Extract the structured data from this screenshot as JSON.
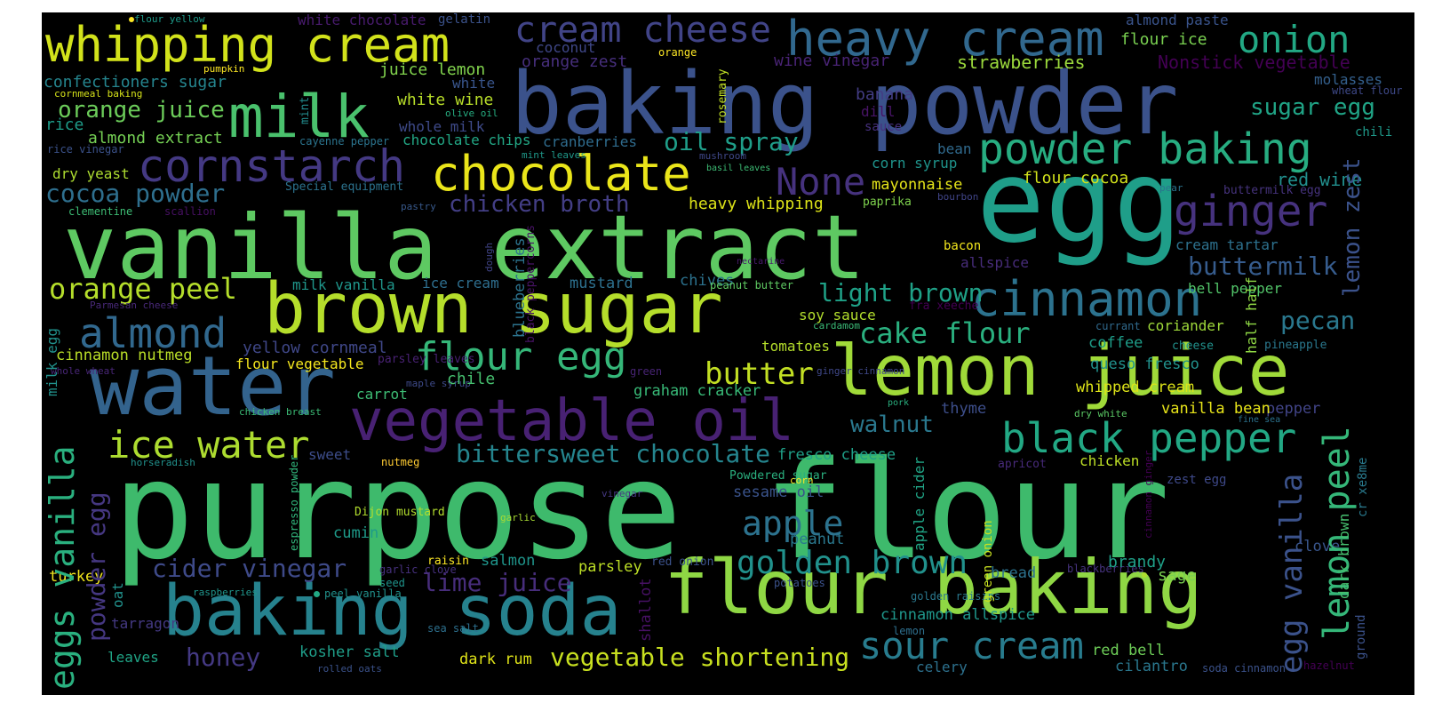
{
  "wordcloud": {
    "background": "#000000",
    "colormap": "viridis",
    "words": [
      {
        "text": "purpose flour",
        "color": "#3eba6c"
      },
      {
        "text": "vanilla extract",
        "color": "#5ec962"
      },
      {
        "text": "egg",
        "color": "#1f9e89"
      },
      {
        "text": "baking powder",
        "color": "#3b528b"
      },
      {
        "text": "brown sugar",
        "color": "#b5de2b"
      },
      {
        "text": "water",
        "color": "#33638d"
      },
      {
        "text": "lemon juice",
        "color": "#a0da39"
      },
      {
        "text": "flour baking",
        "color": "#8fd744"
      },
      {
        "text": "baking soda",
        "color": "#26828e"
      },
      {
        "text": "vegetable oil",
        "color": "#482173"
      },
      {
        "text": "whipping cream",
        "color": "#d2e21b"
      },
      {
        "text": "heavy cream",
        "color": "#31688e"
      },
      {
        "text": "milk",
        "color": "#4ac16d"
      },
      {
        "text": "cream cheese",
        "color": "#414487"
      },
      {
        "text": "chocolate",
        "color": "#eae51a"
      },
      {
        "text": "cornstarch",
        "color": "#443983"
      },
      {
        "text": "cinnamon",
        "color": "#2c728e"
      },
      {
        "text": "powder baking",
        "color": "#27ad81"
      },
      {
        "text": "ginger",
        "color": "#46327e"
      },
      {
        "text": "black pepper",
        "color": "#22a884"
      },
      {
        "text": "onion",
        "color": "#22a884"
      },
      {
        "text": "None",
        "color": "#46327e"
      },
      {
        "text": "almond",
        "color": "#31688e"
      },
      {
        "text": "ice water",
        "color": "#addc30"
      },
      {
        "text": "flour egg",
        "color": "#35b779"
      },
      {
        "text": "sour cream",
        "color": "#287c8e"
      },
      {
        "text": "golden brown",
        "color": "#21918c"
      },
      {
        "text": "lemon peel",
        "color": "#35b779"
      },
      {
        "text": "eggs vanilla",
        "color": "#2ab07f"
      },
      {
        "text": "egg vanilla",
        "color": "#3b528b"
      },
      {
        "text": "cake flour",
        "color": "#2ab07f"
      },
      {
        "text": "apple",
        "color": "#2c728e"
      },
      {
        "text": "butter",
        "color": "#c2df23"
      },
      {
        "text": "cocoa powder",
        "color": "#2e6f8e"
      },
      {
        "text": "powder egg",
        "color": "#b5de2b"
      },
      {
        "text": "orange peel",
        "color": "#453781"
      },
      {
        "text": "vegetable shortening",
        "color": "#c8e020"
      },
      {
        "text": "bittersweet chocolate",
        "color": "#25858e"
      },
      {
        "text": "baking soda",
        "color": "#26828e"
      },
      {
        "text": "oil spray",
        "color": "#1f9e89"
      },
      {
        "text": "buttermilk",
        "color": "#365c8d"
      },
      {
        "text": "lemon zest",
        "color": "#3b528b"
      },
      {
        "text": "cider vinegar",
        "color": "#3e4a89"
      },
      {
        "text": "lime juice",
        "color": "#472d7b"
      },
      {
        "text": "honey",
        "color": "#443983"
      },
      {
        "text": "chicken broth",
        "color": "#433e85"
      },
      {
        "text": "orange juice",
        "color": "#6ccd5a"
      },
      {
        "text": "almond extract",
        "color": "#75d054"
      },
      {
        "text": "confectioners sugar",
        "color": "#25858e"
      },
      {
        "text": "light brown",
        "color": "#1fa187"
      },
      {
        "text": "walnut",
        "color": "#2a788e"
      },
      {
        "text": "pecan",
        "color": "#2a788e"
      },
      {
        "text": "sugar egg",
        "color": "#20a486"
      },
      {
        "text": "red wine",
        "color": "#218f8d"
      },
      {
        "text": "strawberries",
        "color": "#9bd93c"
      },
      {
        "text": "Nonstick vegetable",
        "color": "#440154"
      },
      {
        "text": "flour ice",
        "color": "#7ad151"
      },
      {
        "text": "almond paste",
        "color": "#3a548c"
      },
      {
        "text": "molasses",
        "color": "#34608d"
      },
      {
        "text": "wheat flour",
        "color": "#3e4989"
      },
      {
        "text": "juice lemon",
        "color": "#81d34d"
      },
      {
        "text": "coconut",
        "color": "#3f4788"
      },
      {
        "text": "orange zest",
        "color": "#472f7d"
      },
      {
        "text": "white",
        "color": "#39558c"
      },
      {
        "text": "white wine",
        "color": "#b8de29"
      },
      {
        "text": "whole milk",
        "color": "#3e4a89"
      },
      {
        "text": "white chocolate",
        "color": "#481b6d"
      },
      {
        "text": "gelatin",
        "color": "#3b528b"
      },
      {
        "text": "flour yellow",
        "color": "#1e9b8a"
      },
      {
        "text": "pumpkin",
        "color": "#fde725"
      },
      {
        "text": "cornmeal baking",
        "color": "#d5e21a"
      },
      {
        "text": "rice",
        "color": "#1e9c89"
      },
      {
        "text": "rice vinegar",
        "color": "#3b528b"
      },
      {
        "text": "orange",
        "color": "#fde725"
      },
      {
        "text": "wine vinegar",
        "color": "#482374"
      },
      {
        "text": "banana",
        "color": "#433d84"
      },
      {
        "text": "dill",
        "color": "#481467"
      },
      {
        "text": "sauce",
        "color": "#46307e"
      },
      {
        "text": "bean",
        "color": "#306a8e"
      },
      {
        "text": "chili",
        "color": "#1f9a8a"
      },
      {
        "text": "corn syrup",
        "color": "#1f948c"
      },
      {
        "text": "flour cocoa",
        "color": "#d2e21b"
      },
      {
        "text": "mayonnaise",
        "color": "#e5e419"
      },
      {
        "text": "paprika",
        "color": "#7fd34e"
      },
      {
        "text": "bourbon",
        "color": "#404588"
      },
      {
        "text": "pear",
        "color": "#2b748e"
      },
      {
        "text": "buttermilk egg",
        "color": "#46337e"
      },
      {
        "text": "cream tartar",
        "color": "#2d718e"
      },
      {
        "text": "bacon",
        "color": "#f1e51d"
      },
      {
        "text": "allspice",
        "color": "#472c7a"
      },
      {
        "text": "bell pepper",
        "color": "#52c569"
      },
      {
        "text": "heavy whipping",
        "color": "#dde318"
      },
      {
        "text": "chocolate chips",
        "color": "#22a785"
      },
      {
        "text": "cranberries",
        "color": "#2f6c8e"
      },
      {
        "text": "cayenne pepper",
        "color": "#2b748e"
      },
      {
        "text": "mint leaves",
        "color": "#1f998a"
      },
      {
        "text": "mushroom",
        "color": "#3f4889"
      },
      {
        "text": "basil leaves",
        "color": "#3dbc74"
      },
      {
        "text": "Special equipment",
        "color": "#2c738e"
      },
      {
        "text": "pastry",
        "color": "#38598c"
      },
      {
        "text": "dry yeast",
        "color": "#addc30"
      },
      {
        "text": "clementine",
        "color": "#3dbc74"
      },
      {
        "text": "scallion",
        "color": "#471063"
      },
      {
        "text": "olive oil",
        "color": "#26ad81"
      },
      {
        "text": "mint",
        "color": "#228b8d"
      },
      {
        "text": "rosemary",
        "color": "#c0df25"
      },
      {
        "text": "milk vanilla",
        "color": "#1f968b"
      },
      {
        "text": "ice cream",
        "color": "#2e6e8e"
      },
      {
        "text": "mustard",
        "color": "#2d708e"
      },
      {
        "text": "chives",
        "color": "#2c728e"
      },
      {
        "text": "peanut butter",
        "color": "#5ec962"
      },
      {
        "text": "blueberries",
        "color": "#2c738e"
      },
      {
        "text": "black peppercorns",
        "color": "#471365"
      },
      {
        "text": "nectarine",
        "color": "#414487"
      },
      {
        "text": "dough",
        "color": "#481a6c"
      },
      {
        "text": "Parmesan cheese",
        "color": "#22a884"
      },
      {
        "text": "cinnamon nutmeg",
        "color": "#482878"
      },
      {
        "text": "yellow cornmeal",
        "color": "#bade28"
      },
      {
        "text": "flour vegetable",
        "color": "#3f4788"
      },
      {
        "text": "whole wheat",
        "color": "#f4e61e"
      },
      {
        "text": "parsley leaves",
        "color": "#482677"
      },
      {
        "text": "soy sauce",
        "color": "#482173"
      },
      {
        "text": "tomatoes",
        "color": "#b2dd2d"
      },
      {
        "text": "cardamom",
        "color": "#b5de2b"
      },
      {
        "text": "fra xeeche",
        "color": "#3aba76"
      },
      {
        "text": "currant",
        "color": "#440154"
      },
      {
        "text": "coriander",
        "color": "#306a8e"
      },
      {
        "text": "half half",
        "color": "#9fda3a"
      },
      {
        "text": "coffee",
        "color": "#8fd744"
      },
      {
        "text": "cheese",
        "color": "#1e9d89"
      },
      {
        "text": "pineapple",
        "color": "#21918c"
      },
      {
        "text": "ginger cinnamon",
        "color": "#2a788e"
      },
      {
        "text": "queso fresco",
        "color": "#3f4889"
      },
      {
        "text": "green",
        "color": "#21918c"
      },
      {
        "text": "maple syrup",
        "color": "#482475"
      },
      {
        "text": "chile",
        "color": "#3e4a89"
      },
      {
        "text": "milk egg",
        "color": "#46c06f"
      },
      {
        "text": "carrot",
        "color": "#21918c"
      },
      {
        "text": "graham cracker",
        "color": "#3dbc74"
      },
      {
        "text": "whipped cream",
        "color": "#38b977"
      },
      {
        "text": "pepper",
        "color": "#dde318"
      },
      {
        "text": "thyme",
        "color": "#414487"
      },
      {
        "text": "vanilla bean",
        "color": "#3d4e8a"
      },
      {
        "text": "dry white",
        "color": "#e7e419"
      },
      {
        "text": "pork",
        "color": "#5ac864"
      },
      {
        "text": "fine sea",
        "color": "#2ab07f"
      },
      {
        "text": "cr xe8me",
        "color": "#2c728e"
      },
      {
        "text": "chicken breast",
        "color": "#297a8e"
      },
      {
        "text": "sweet",
        "color": "#3bbb75"
      },
      {
        "text": "nutmeg",
        "color": "#3d4d8a"
      },
      {
        "text": "horseradish",
        "color": "#ffcc33"
      },
      {
        "text": "fresco cheese",
        "color": "#21918c"
      },
      {
        "text": "apricot",
        "color": "#1fa088"
      },
      {
        "text": "chicken",
        "color": "#472a7a"
      },
      {
        "text": "zest egg",
        "color": "#bddf26"
      },
      {
        "text": "oat",
        "color": "#3e4989"
      },
      {
        "text": "espresso powder",
        "color": "#21918c"
      },
      {
        "text": "Powdered sugar",
        "color": "#31b57b"
      },
      {
        "text": "corn",
        "color": "#2ab07f"
      },
      {
        "text": "sesame oil",
        "color": "#fde725"
      },
      {
        "text": "apple cider",
        "color": "#3a538b"
      },
      {
        "text": "green onion",
        "color": "#20a486"
      },
      {
        "text": "cinnamon ginger",
        "color": "#c8e020"
      },
      {
        "text": "vinegar",
        "color": "#440154"
      },
      {
        "text": "Dijon mustard",
        "color": "#3b528b"
      },
      {
        "text": "garlic",
        "color": "#453882"
      },
      {
        "text": "cumin",
        "color": "#b2dd2d"
      },
      {
        "text": "peanut",
        "color": "#a8db34"
      },
      {
        "text": "clove",
        "color": "#1e9b8a"
      },
      {
        "text": "shallot",
        "color": "#2a788e"
      },
      {
        "text": "turkey",
        "color": "#39568c"
      },
      {
        "text": "garlic clove",
        "color": "#471164"
      },
      {
        "text": "seed",
        "color": "#f1e51d"
      },
      {
        "text": "raisin",
        "color": "#46307e"
      },
      {
        "text": "salmon",
        "color": "#1f948c"
      },
      {
        "text": "parsley",
        "color": "#fde725"
      },
      {
        "text": "red onion",
        "color": "#1f958b"
      },
      {
        "text": "bread",
        "color": "#bddf26"
      },
      {
        "text": "blackberries",
        "color": "#3b528b"
      },
      {
        "text": "brandy",
        "color": "#2c728e"
      },
      {
        "text": "sage",
        "color": "#46337e"
      },
      {
        "text": "dark brown",
        "color": "#1fa088"
      },
      {
        "text": "raspberries",
        "color": "#7ad151"
      },
      {
        "text": "peel vanilla",
        "color": "#46c06f"
      },
      {
        "text": "potatoes",
        "color": "#1f958b"
      },
      {
        "text": "golden raisins",
        "color": "#21918c"
      },
      {
        "text": "cinnamon allspice",
        "color": "#3b528b"
      },
      {
        "text": "tarragon",
        "color": "#2a788e"
      },
      {
        "text": "sea salt",
        "color": "#1f978b"
      },
      {
        "text": "lemon",
        "color": "#443983"
      },
      {
        "text": "red bell",
        "color": "#2d708e"
      },
      {
        "text": "leaves",
        "color": "#2e6f8e"
      },
      {
        "text": "kosher salt",
        "color": "#6ece58"
      },
      {
        "text": "dark rum",
        "color": "#20a486"
      },
      {
        "text": "celery",
        "color": "#1f9e89"
      },
      {
        "text": "cilantro",
        "color": "#dfe318"
      },
      {
        "text": "soda cinnamon",
        "color": "#2d718e"
      },
      {
        "text": "hazelnut",
        "color": "#2a778e"
      },
      {
        "text": "rolled oats",
        "color": "#3b528b"
      },
      {
        "text": "ground",
        "color": "#440154"
      },
      {
        "text": "ice cubes",
        "color": "#3b528b"
      }
    ]
  }
}
